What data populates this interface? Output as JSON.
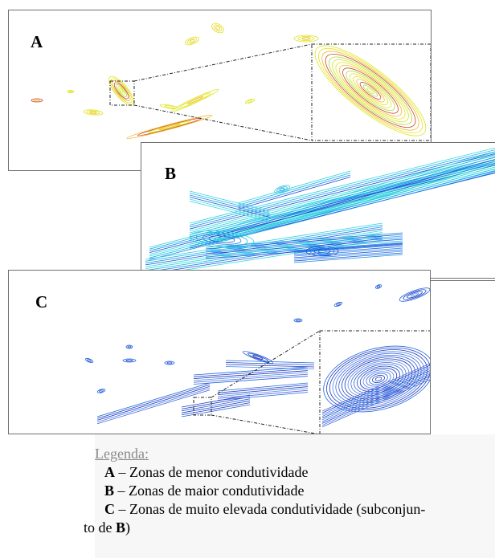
{
  "panels": {
    "a": {
      "label": "A"
    },
    "b": {
      "label": "B"
    },
    "c": {
      "label": "C"
    }
  },
  "legend": {
    "title": "Legenda:",
    "items": [
      {
        "key": "A",
        "text": " – Zonas de menor condutividade"
      },
      {
        "key": "B",
        "text": " – Zonas de maior condutividade"
      },
      {
        "key": "C",
        "text": " – Zonas de muito elevada condutividade (subconjun-"
      }
    ],
    "continuation": {
      "text": "to de ",
      "key": "B",
      "close": ")"
    }
  },
  "colors": {
    "panel_a": [
      "#d7e81e",
      "#e9e21a",
      "#f0b82a",
      "#d0421e",
      "#a4dc3a"
    ],
    "panel_b": [
      "#29d4e0",
      "#19b3e6",
      "#1588e8",
      "#1a50d8",
      "#36e0d6"
    ],
    "panel_c": [
      "#1e66e0",
      "#1a44c8",
      "#2a2fb6",
      "#3a8ef0",
      "#5560d8"
    ]
  }
}
